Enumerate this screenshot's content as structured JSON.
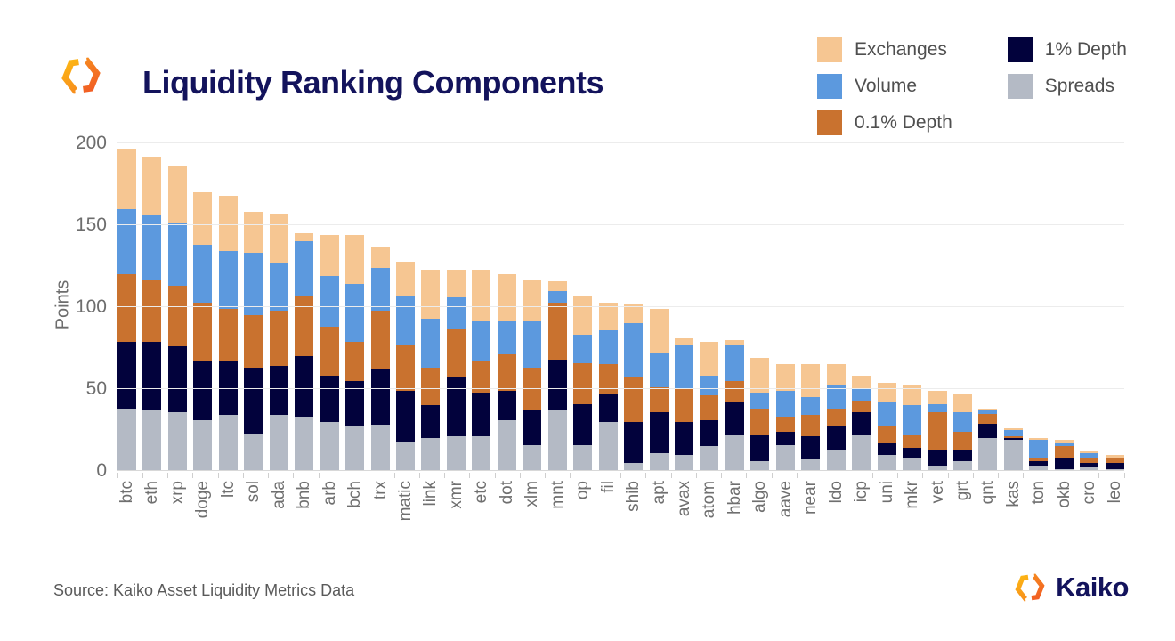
{
  "header": {
    "title": "Liquidity Ranking Components"
  },
  "legend": {
    "items": [
      {
        "label": "Exchanges",
        "color": "#F6C692"
      },
      {
        "label": "Volume",
        "color": "#5C99DE"
      },
      {
        "label": "0.1% Depth",
        "color": "#C9722F"
      },
      {
        "label": "1% Depth",
        "color": "#02023C"
      },
      {
        "label": "Spreads",
        "color": "#B4BAC5"
      }
    ]
  },
  "chart_data": {
    "type": "bar",
    "stacked": true,
    "title": "Liquidity Ranking Components",
    "ylabel": "Points",
    "ylim": [
      0,
      200
    ],
    "yticks": [
      0,
      50,
      100,
      150,
      200
    ],
    "grid": "horizontal",
    "legend_position": "top-right",
    "categories": [
      "btc",
      "eth",
      "xrp",
      "doge",
      "ltc",
      "sol",
      "ada",
      "bnb",
      "arb",
      "bch",
      "trx",
      "matic",
      "link",
      "xmr",
      "etc",
      "dot",
      "xlm",
      "mnt",
      "op",
      "fil",
      "shib",
      "apt",
      "avax",
      "atom",
      "hbar",
      "algo",
      "aave",
      "near",
      "ldo",
      "icp",
      "uni",
      "mkr",
      "vet",
      "grt",
      "qnt",
      "kas",
      "ton",
      "okb",
      "cro",
      "leo"
    ],
    "series": [
      {
        "name": "Spreads",
        "color": "#B4BAC5",
        "values": [
          38,
          37,
          36,
          31,
          34,
          23,
          34,
          33,
          30,
          27,
          28,
          18,
          20,
          21,
          21,
          31,
          16,
          37,
          16,
          30,
          5,
          11,
          10,
          15,
          22,
          6,
          16,
          7,
          13,
          22,
          10,
          8,
          3,
          6,
          20,
          19,
          3,
          1,
          2,
          1
        ]
      },
      {
        "name": "1% Depth",
        "color": "#02023C",
        "values": [
          41,
          42,
          40,
          36,
          33,
          40,
          30,
          37,
          28,
          28,
          34,
          31,
          20,
          36,
          27,
          18,
          21,
          31,
          25,
          17,
          25,
          25,
          20,
          16,
          20,
          16,
          8,
          14,
          14,
          14,
          7,
          6,
          10,
          7,
          9,
          1,
          3,
          7,
          3,
          4
        ]
      },
      {
        "name": "0.1% Depth",
        "color": "#C9722F",
        "values": [
          41,
          38,
          37,
          36,
          32,
          32,
          34,
          37,
          30,
          24,
          36,
          28,
          23,
          30,
          19,
          22,
          26,
          35,
          25,
          18,
          27,
          15,
          20,
          15,
          13,
          16,
          9,
          13,
          11,
          7,
          10,
          8,
          23,
          11,
          6,
          1,
          2,
          7,
          3,
          3
        ]
      },
      {
        "name": "Volume",
        "color": "#5C99DE",
        "values": [
          40,
          39,
          38,
          35,
          35,
          38,
          29,
          33,
          31,
          35,
          26,
          30,
          30,
          19,
          25,
          21,
          29,
          7,
          17,
          21,
          33,
          21,
          27,
          12,
          22,
          10,
          16,
          11,
          15,
          7,
          15,
          18,
          5,
          12,
          2,
          4,
          11,
          2,
          3,
          0
        ]
      },
      {
        "name": "Exchanges",
        "color": "#F6C692",
        "values": [
          37,
          36,
          35,
          32,
          34,
          25,
          30,
          5,
          25,
          30,
          13,
          21,
          30,
          17,
          31,
          28,
          25,
          6,
          24,
          17,
          12,
          27,
          4,
          21,
          3,
          21,
          16,
          20,
          12,
          8,
          12,
          12,
          8,
          11,
          1,
          1,
          1,
          2,
          1,
          2
        ]
      }
    ],
    "totals": [
      197,
      192,
      186,
      170,
      168,
      158,
      157,
      145,
      144,
      144,
      137,
      128,
      123,
      123,
      123,
      120,
      117,
      116,
      107,
      103,
      102,
      99,
      81,
      79,
      80,
      69,
      65,
      65,
      65,
      58,
      54,
      52,
      49,
      47,
      38,
      26,
      20,
      19,
      12,
      10
    ]
  },
  "yaxis": {
    "label": "Points"
  },
  "footer": {
    "source": "Source: Kaiko Asset Liquidity Metrics Data",
    "brand": "Kaiko"
  }
}
